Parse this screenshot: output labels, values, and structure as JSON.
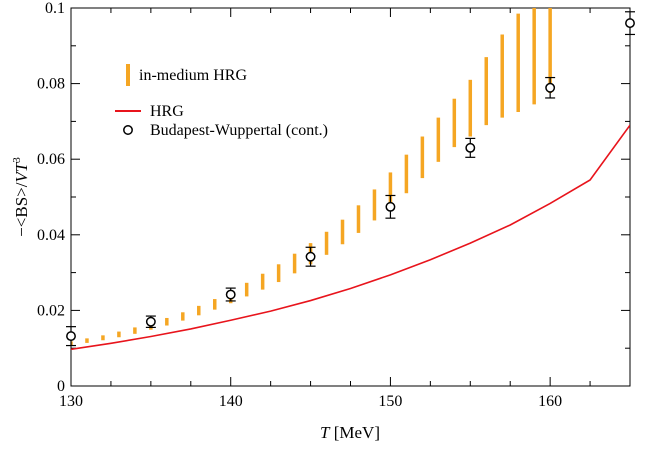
{
  "chart_data": {
    "type": "scatter",
    "xlabel": "T [MeV]",
    "xlabel_italic": "T",
    "xlabel_rest": " [MeV]",
    "ylabel": "−<BS>/VT³",
    "ylabel_main": "−<BS>/",
    "ylabel_italic": "VT",
    "ylabel_sup": "3",
    "xlim": [
      130,
      165
    ],
    "ylim": [
      0,
      0.1
    ],
    "x_ticks": [
      130,
      140,
      150,
      160
    ],
    "x_tick_labels": [
      "130",
      "140",
      "150",
      "160"
    ],
    "y_ticks": [
      0,
      0.02,
      0.04,
      0.06,
      0.08,
      0.1
    ],
    "y_tick_labels": [
      "0",
      "0.02",
      "0.04",
      "0.06",
      "0.08",
      "0.1"
    ],
    "grid": false,
    "legend_position": "top-left",
    "series": [
      {
        "name": "in-medium HRG",
        "kind": "vertical-band",
        "color": "#f5a623",
        "x": [
          130,
          131,
          132,
          133,
          134,
          135,
          136,
          137,
          138,
          139,
          140,
          141,
          142,
          143,
          144,
          145,
          146,
          147,
          148,
          149,
          150,
          151,
          152,
          153,
          154,
          155,
          156,
          157,
          158,
          159,
          160
        ],
        "y_low": [
          0.0108,
          0.0114,
          0.0121,
          0.0129,
          0.0138,
          0.0149,
          0.016,
          0.0173,
          0.0187,
          0.0202,
          0.0219,
          0.0237,
          0.0255,
          0.0275,
          0.0298,
          0.0322,
          0.0347,
          0.0375,
          0.0405,
          0.0438,
          0.0473,
          0.051,
          0.055,
          0.0593,
          0.0632,
          0.066,
          0.069,
          0.071,
          0.0725,
          0.0745,
          0.0775
        ],
        "y_high": [
          0.0118,
          0.0126,
          0.0134,
          0.0144,
          0.0155,
          0.0167,
          0.018,
          0.0195,
          0.0212,
          0.023,
          0.0251,
          0.0273,
          0.0297,
          0.0322,
          0.035,
          0.0378,
          0.0408,
          0.044,
          0.0478,
          0.052,
          0.0565,
          0.0612,
          0.066,
          0.071,
          0.076,
          0.081,
          0.087,
          0.093,
          0.0985,
          0.104,
          0.11
        ]
      },
      {
        "name": "HRG",
        "kind": "line",
        "color": "#e8141c",
        "x": [
          130,
          132.5,
          135,
          137.5,
          140,
          142.5,
          145,
          147.5,
          150,
          152.5,
          155,
          157.5,
          160,
          162.5,
          165
        ],
        "y": [
          0.0097,
          0.0113,
          0.0131,
          0.0151,
          0.0174,
          0.0198,
          0.0226,
          0.0258,
          0.0294,
          0.0334,
          0.0378,
          0.0426,
          0.0483,
          0.0545,
          0.069
        ]
      },
      {
        "name": "Budapest-Wuppertal (cont.)",
        "kind": "errorbar-markers",
        "color": "#000000",
        "x": [
          130,
          135,
          140,
          145,
          150,
          155,
          160,
          165
        ],
        "y": [
          0.0132,
          0.017,
          0.0242,
          0.0342,
          0.0474,
          0.063,
          0.0789,
          0.096
        ],
        "err": [
          0.0025,
          0.0015,
          0.0017,
          0.0025,
          0.003,
          0.0025,
          0.0027,
          0.003
        ]
      }
    ]
  }
}
